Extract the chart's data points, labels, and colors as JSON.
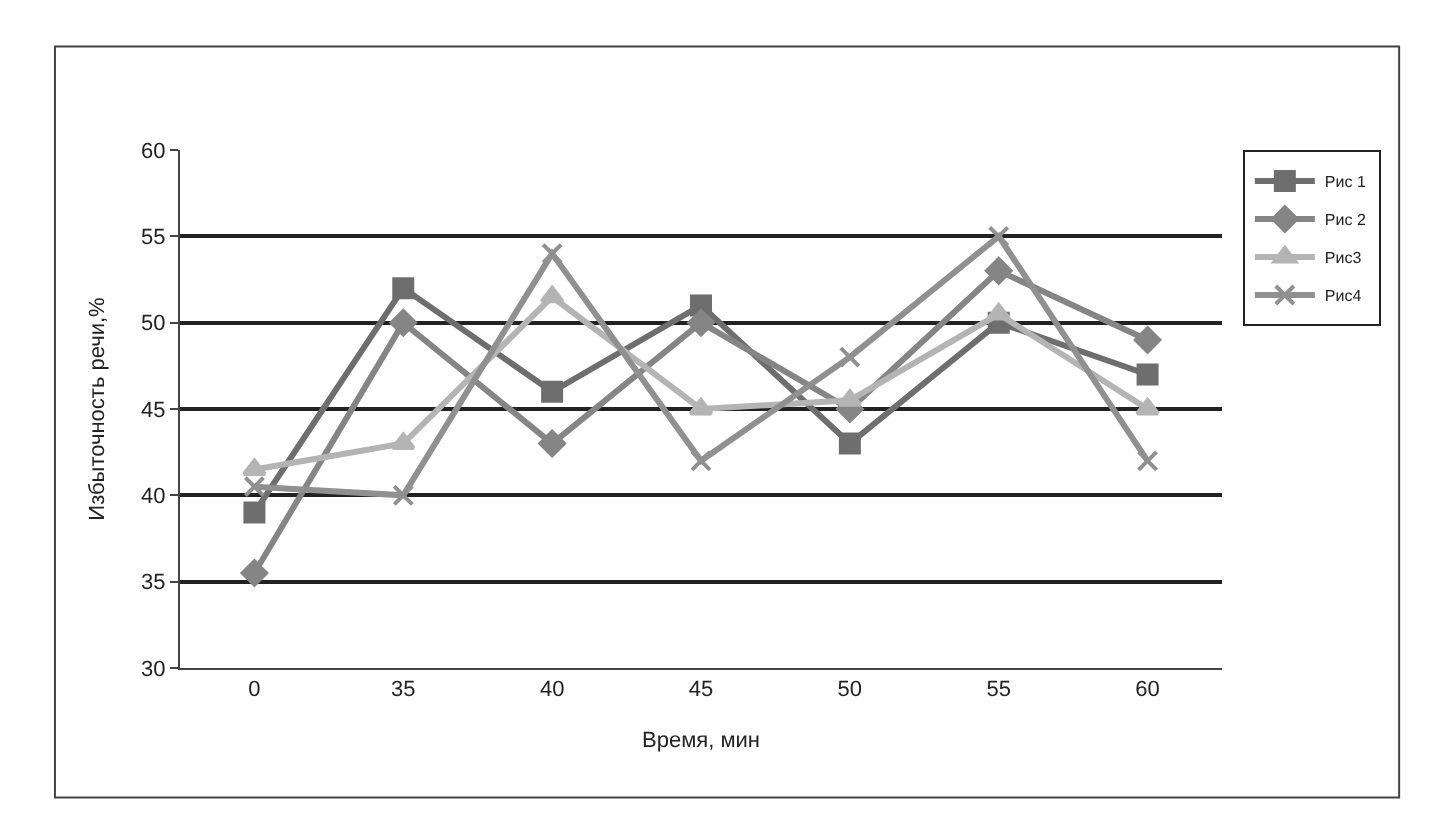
{
  "chart_data": {
    "type": "line",
    "xlabel": "Время, мин",
    "ylabel": "Избыточность речи,%",
    "categories": [
      "0",
      "35",
      "40",
      "45",
      "50",
      "55",
      "60"
    ],
    "ylim": [
      30,
      60
    ],
    "yticks": [
      30,
      35,
      40,
      45,
      50,
      55,
      60
    ],
    "grid": "y",
    "legend": "top right",
    "series": [
      {
        "name": "Рис 1",
        "color": "#6e6e6e",
        "marker": "square",
        "values": [
          39,
          52,
          46,
          51,
          43,
          50,
          47
        ]
      },
      {
        "name": "Рис 2",
        "color": "#858585",
        "marker": "diamond",
        "values": [
          35.5,
          50,
          43,
          50,
          45,
          53,
          49
        ]
      },
      {
        "name": "Рис3",
        "color": "#b4b4b4",
        "marker": "triangle",
        "values": [
          41.5,
          43,
          51.5,
          45,
          45.5,
          50.5,
          45
        ]
      },
      {
        "name": "Рис4",
        "color": "#909090",
        "marker": "cross",
        "values": [
          40.5,
          40,
          54,
          42,
          48,
          55,
          42
        ]
      }
    ]
  }
}
